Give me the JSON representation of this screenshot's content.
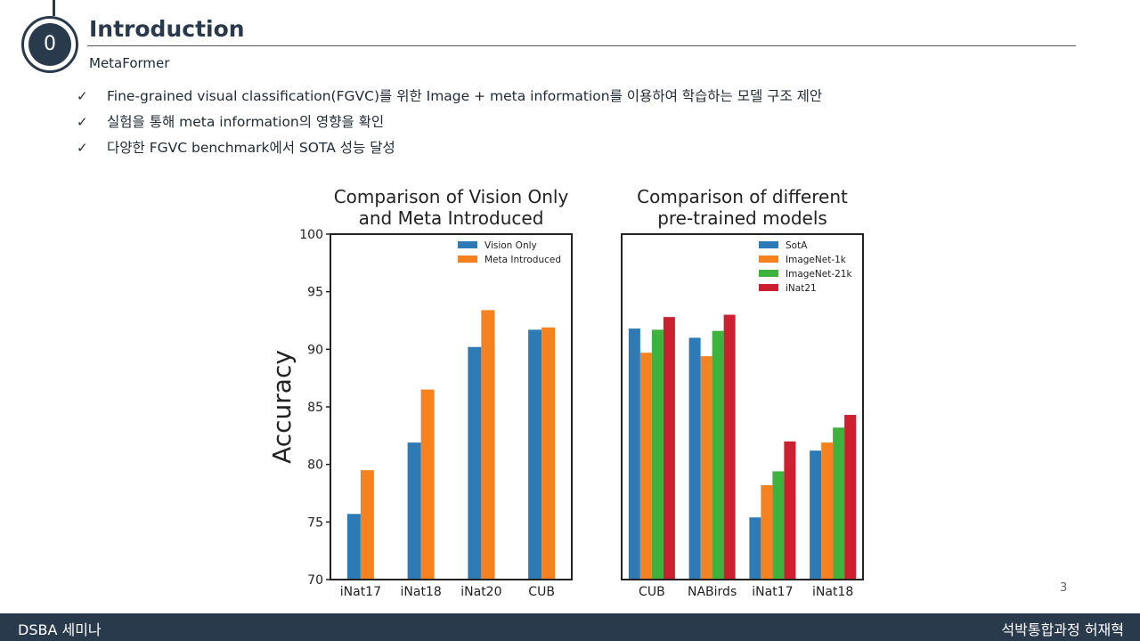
{
  "header": {
    "section_number": "0",
    "title": "Introduction",
    "subtitle": "MetaFormer"
  },
  "bullets": [
    "Fine-grained visual classification(FGVC)를 위한 Image + meta information를 이용하여 학습하는 모델 구조 제안",
    "실험을 통해 meta information의 영향을 확인",
    "다양한 FGVC benchmark에서 SOTA 성능 달성"
  ],
  "bullet_icon": "check-icon",
  "chart_data": [
    {
      "type": "bar",
      "title": "Comparison of Vision Only\n and Meta Introduced",
      "ylabel": "Accuracy",
      "xlabel": "",
      "ylim": [
        70,
        100
      ],
      "yticks": [
        70,
        75,
        80,
        85,
        90,
        95,
        100
      ],
      "legend_position": "top-right",
      "categories": [
        "iNat17",
        "iNat18",
        "iNat20",
        "CUB"
      ],
      "series": [
        {
          "name": "Vision Only",
          "color": "#2c7bb6",
          "values": [
            75.7,
            81.9,
            90.2,
            91.7
          ]
        },
        {
          "name": "Meta Introduced",
          "color": "#f5821f",
          "values": [
            79.5,
            86.5,
            93.4,
            91.9
          ]
        }
      ]
    },
    {
      "type": "bar",
      "title": "Comparison of different\n pre-trained models",
      "ylabel": "",
      "xlabel": "",
      "ylim": [
        70,
        100
      ],
      "legend_position": "top-right",
      "categories": [
        "CUB",
        "NABirds",
        "iNat17",
        "iNat18"
      ],
      "series": [
        {
          "name": "SotA",
          "color": "#2c7bb6",
          "values": [
            91.8,
            91.0,
            75.4,
            81.2
          ]
        },
        {
          "name": "ImageNet-1k",
          "color": "#f5821f",
          "values": [
            89.7,
            89.4,
            78.2,
            81.9
          ]
        },
        {
          "name": "ImageNet-21k",
          "color": "#3cb33c",
          "values": [
            91.7,
            91.6,
            79.4,
            83.2
          ]
        },
        {
          "name": "iNat21",
          "color": "#cc1f2f",
          "values": [
            92.8,
            93.0,
            82.0,
            84.3
          ]
        }
      ]
    }
  ],
  "page_number": "3",
  "footer": {
    "left": "DSBA 세미나",
    "right": "석박통합과정 허재혁"
  }
}
